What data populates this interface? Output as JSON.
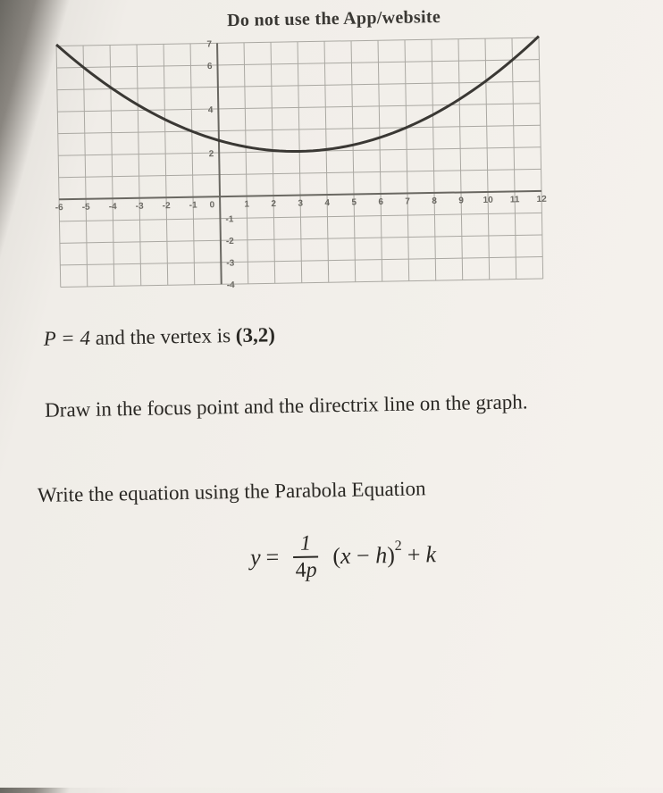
{
  "header": {
    "text": "Do not use the App/website"
  },
  "chart": {
    "type": "parabola-grid",
    "x_min": -6,
    "x_max": 12,
    "y_min": -4,
    "y_max": 7,
    "x_tick_step": 1,
    "y_tick_step": 1,
    "x_labels": [
      "-6",
      "-5",
      "-4",
      "-3",
      "-2",
      "-1",
      "1",
      "2",
      "3",
      "4",
      "5",
      "6",
      "7",
      "8",
      "9",
      "10",
      "11",
      "12"
    ],
    "y_labels_pos": [
      "2",
      "4",
      "6",
      "7"
    ],
    "y_labels_neg": [
      "-1",
      "-2",
      "-3",
      "-4"
    ],
    "grid_color": "#aaa8a2",
    "axis_color": "#6a6862",
    "parabola_color": "#3a3834",
    "parabola_stroke_width": 3,
    "background": "#f2efea",
    "vertex": {
      "h": 3,
      "k": 2
    },
    "p": 4,
    "curve_samples": [
      {
        "x": -6,
        "y": 7.0625
      },
      {
        "x": -4,
        "y": 5.0625
      },
      {
        "x": -2,
        "y": 3.5625
      },
      {
        "x": 0,
        "y": 2.5625
      },
      {
        "x": 3,
        "y": 2.0
      },
      {
        "x": 6,
        "y": 2.5625
      },
      {
        "x": 8,
        "y": 3.5625
      },
      {
        "x": 10,
        "y": 5.0625
      },
      {
        "x": 12,
        "y": 7.0625
      }
    ]
  },
  "given": {
    "p_label": "P",
    "eq": " = ",
    "p_value": "4",
    "text_after": " and the vertex is ",
    "vertex_text": "(3,2)"
  },
  "instruction1": {
    "text": "Draw in the focus point and the directrix line on the graph."
  },
  "instruction2": {
    "text": "Write the equation using the Parabola Equation"
  },
  "equation": {
    "lhs": "y",
    "eq": " = ",
    "num": "1",
    "den_4": "4",
    "den_p": "p",
    "open": "(",
    "x": "x",
    "minus": " − ",
    "h": "h",
    "close": ")",
    "exp": "2",
    "plus": " + ",
    "k": "k"
  }
}
